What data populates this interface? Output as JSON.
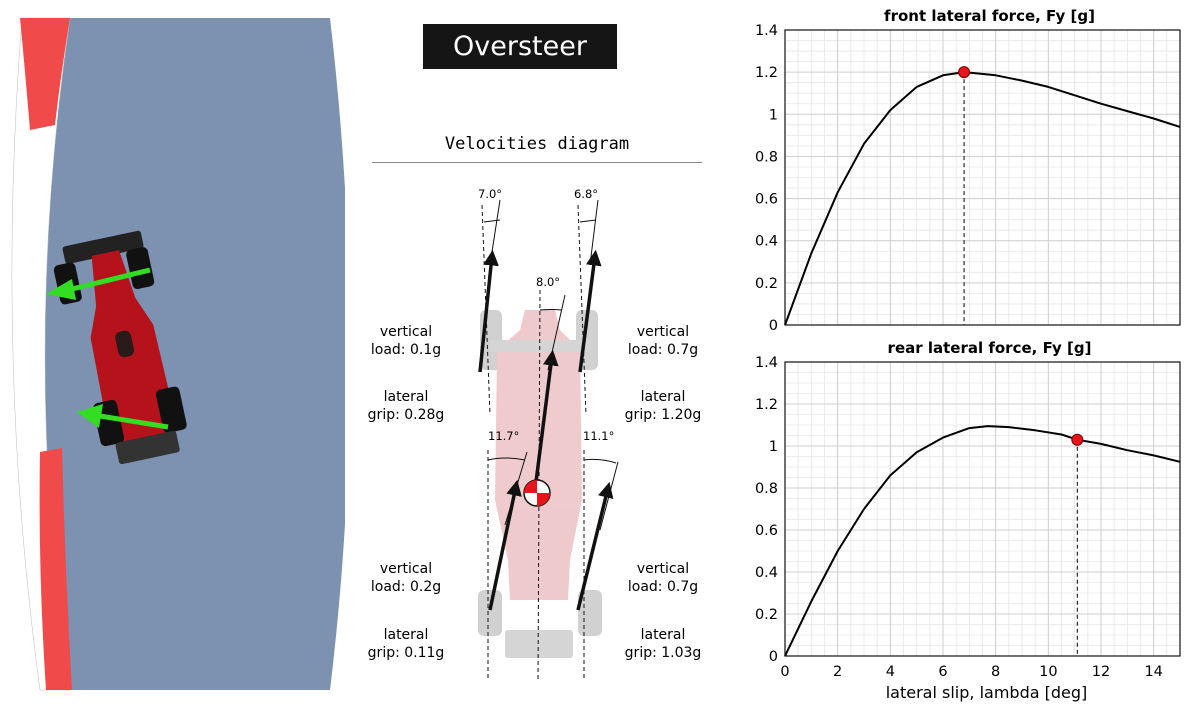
{
  "title": "Oversteer",
  "diagram_heading": "Velocities diagram",
  "angles": {
    "front_left": "7.0°",
    "front_right": "6.8°",
    "center": "8.0°",
    "rear_left": "11.7°",
    "rear_right": "11.1°"
  },
  "wheels": {
    "front_left": {
      "load_line1": "vertical",
      "load_line2": "load: 0.1g",
      "grip_line1": "lateral",
      "grip_line2": "grip: 0.28g"
    },
    "front_right": {
      "load_line1": "vertical",
      "load_line2": "load: 0.7g",
      "grip_line1": "lateral",
      "grip_line2": "grip: 1.20g"
    },
    "rear_left": {
      "load_line1": "vertical",
      "load_line2": "load: 0.2g",
      "grip_line1": "lateral",
      "grip_line2": "grip: 0.11g"
    },
    "rear_right": {
      "load_line1": "vertical",
      "load_line2": "load: 0.7g",
      "grip_line1": "lateral",
      "grip_line2": "grip: 1.03g"
    }
  },
  "colors": {
    "track": "#7d91b0",
    "kerb_red": "#f04a4a",
    "car_red": "#b5121b",
    "force_arrow": "#33dd22",
    "marker": "#e8141b"
  },
  "chart_data": [
    {
      "type": "line",
      "title": "front lateral force, Fy [g]",
      "xlabel": "",
      "ylabel": "",
      "xlim": [
        0,
        15
      ],
      "ylim": [
        0,
        1.4
      ],
      "xticks": [],
      "yticks": [
        "0",
        "0.2",
        "0.4",
        "0.6",
        "0.8",
        "1",
        "1.2",
        "1.4"
      ],
      "grid": true,
      "series": [
        {
          "x": [
            0,
            1,
            2,
            3,
            4,
            5,
            6,
            6.8,
            8,
            9,
            10,
            11,
            12,
            13,
            14,
            15
          ],
          "y": [
            0,
            0.34,
            0.63,
            0.86,
            1.02,
            1.13,
            1.185,
            1.2,
            1.185,
            1.16,
            1.13,
            1.09,
            1.05,
            1.015,
            0.98,
            0.94
          ]
        }
      ],
      "marker": {
        "x": 6.8,
        "y": 1.2
      }
    },
    {
      "type": "line",
      "title": "rear lateral force, Fy [g]",
      "xlabel": "lateral slip, lambda [deg]",
      "ylabel": "",
      "xlim": [
        0,
        15
      ],
      "ylim": [
        0,
        1.4
      ],
      "xticks": [
        "0",
        "2",
        "4",
        "6",
        "8",
        "10",
        "12",
        "14"
      ],
      "yticks": [
        "0",
        "0.2",
        "0.4",
        "0.6",
        "0.8",
        "1",
        "1.2",
        "1.4"
      ],
      "grid": true,
      "series": [
        {
          "x": [
            0,
            1,
            2,
            3,
            4,
            5,
            6,
            7,
            7.7,
            8.5,
            9.5,
            10.5,
            11.1,
            12,
            13,
            14,
            15
          ],
          "y": [
            0,
            0.26,
            0.5,
            0.7,
            0.86,
            0.97,
            1.04,
            1.085,
            1.095,
            1.09,
            1.075,
            1.055,
            1.03,
            1.01,
            0.98,
            0.955,
            0.925
          ]
        }
      ],
      "marker": {
        "x": 11.1,
        "y": 1.03
      }
    }
  ]
}
